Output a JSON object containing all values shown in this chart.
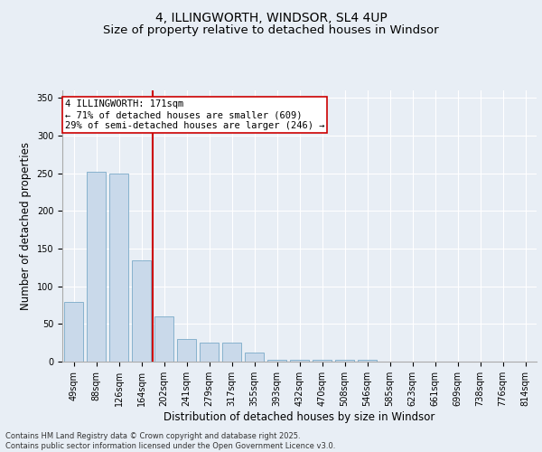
{
  "title_line1": "4, ILLINGWORTH, WINDSOR, SL4 4UP",
  "title_line2": "Size of property relative to detached houses in Windsor",
  "xlabel": "Distribution of detached houses by size in Windsor",
  "ylabel": "Number of detached properties",
  "bar_labels": [
    "49sqm",
    "88sqm",
    "126sqm",
    "164sqm",
    "202sqm",
    "241sqm",
    "279sqm",
    "317sqm",
    "355sqm",
    "393sqm",
    "432sqm",
    "470sqm",
    "508sqm",
    "546sqm",
    "585sqm",
    "623sqm",
    "661sqm",
    "699sqm",
    "738sqm",
    "776sqm",
    "814sqm"
  ],
  "bar_values": [
    79,
    252,
    250,
    135,
    60,
    30,
    25,
    25,
    12,
    2,
    2,
    2,
    2,
    2,
    0,
    0,
    0,
    0,
    0,
    0,
    0
  ],
  "bar_color": "#c9d9ea",
  "bar_edge_color": "#7aaac8",
  "background_color": "#e8eef5",
  "grid_color": "#ffffff",
  "vline_color": "#cc0000",
  "annotation_text": "4 ILLINGWORTH: 171sqm\n← 71% of detached houses are smaller (609)\n29% of semi-detached houses are larger (246) →",
  "annotation_box_color": "#ffffff",
  "annotation_box_edge": "#cc0000",
  "ylim": [
    0,
    360
  ],
  "yticks": [
    0,
    50,
    100,
    150,
    200,
    250,
    300,
    350
  ],
  "footnote": "Contains HM Land Registry data © Crown copyright and database right 2025.\nContains public sector information licensed under the Open Government Licence v3.0.",
  "title_fontsize": 10,
  "subtitle_fontsize": 9.5,
  "axis_label_fontsize": 8.5,
  "tick_fontsize": 7,
  "annotation_fontsize": 7.5
}
